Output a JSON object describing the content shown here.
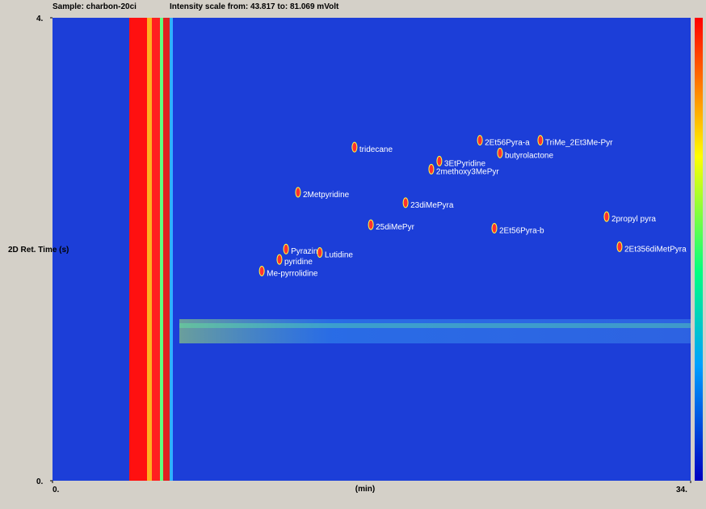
{
  "chart_data": {
    "type": "contour",
    "title": "Sample: charbon-20ci",
    "subtitle": "Intensity scale from: 43.817 to: 81.069 mVolt",
    "x_label": "(min)",
    "y_label": "2D Ret. Time (s)",
    "xlim": [
      0,
      34
    ],
    "ylim": [
      0,
      4
    ],
    "xticks": [
      {
        "value": 0,
        "label": "0."
      },
      {
        "value": 34,
        "label": "34."
      }
    ],
    "yticks": [
      {
        "value": 0,
        "label": "0."
      },
      {
        "value": 4,
        "label": "4."
      }
    ],
    "annotations": [
      {
        "text": "tridecane",
        "x": 16.35,
        "y": 2.84
      },
      {
        "text": "2Metpyridine",
        "x": 13.34,
        "y": 2.45
      },
      {
        "text": "2Et56Pyra-a",
        "x": 23.03,
        "y": 2.9
      },
      {
        "text": "TriMe_2Et3Me-Pyr",
        "x": 26.25,
        "y": 2.9
      },
      {
        "text": "butyrolactone",
        "x": 24.1,
        "y": 2.79
      },
      {
        "text": "3EtPyridine",
        "x": 20.87,
        "y": 2.72
      },
      {
        "text": "2methoxy3MePyr",
        "x": 20.44,
        "y": 2.65
      },
      {
        "text": "23diMePyra",
        "x": 19.07,
        "y": 2.36
      },
      {
        "text": "25diMePyr",
        "x": 17.22,
        "y": 2.17
      },
      {
        "text": "Pyrazine",
        "x": 12.7,
        "y": 1.96
      },
      {
        "text": "pyridine",
        "x": 12.35,
        "y": 1.87
      },
      {
        "text": "Lutidine",
        "x": 14.5,
        "y": 1.93
      },
      {
        "text": "Me-pyrrolidine",
        "x": 11.41,
        "y": 1.77
      },
      {
        "text": "2Et56Pyra-b",
        "x": 23.8,
        "y": 2.14
      },
      {
        "text": "2propyl pyra",
        "x": 29.78,
        "y": 2.24
      },
      {
        "text": "2Et356diMetPyra",
        "x": 30.47,
        "y": 1.98
      }
    ]
  }
}
